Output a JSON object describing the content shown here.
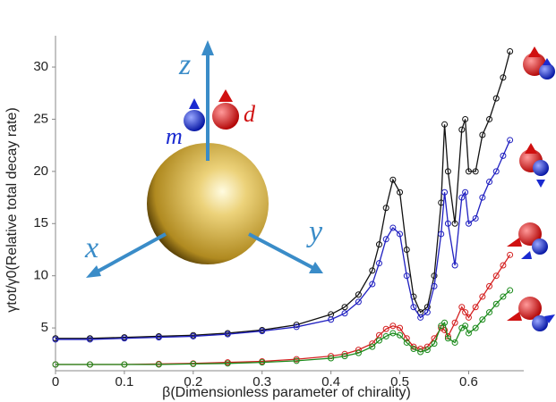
{
  "chart_data": {
    "type": "line",
    "x_label": "β(Dimensionless parameter of chirality)",
    "y_label": "γtot/γ0(Relative total decay rate)",
    "annotations": [
      "z",
      "x",
      "y",
      "m",
      "d"
    ],
    "x": [
      0,
      0.05,
      0.1,
      0.15,
      0.2,
      0.25,
      0.3,
      0.35,
      0.4,
      0.42,
      0.44,
      0.46,
      0.47,
      0.48,
      0.49,
      0.5,
      0.51,
      0.52,
      0.53,
      0.54,
      0.55,
      0.56,
      0.565,
      0.57,
      0.58,
      0.59,
      0.595,
      0.6,
      0.61,
      0.62,
      0.63,
      0.64,
      0.65,
      0.66
    ],
    "series": [
      {
        "color": "#111111",
        "values": [
          4,
          4,
          4.1,
          4.2,
          4.3,
          4.5,
          4.8,
          5.3,
          6.3,
          7,
          8.2,
          10.5,
          13,
          16.5,
          19.2,
          18,
          12.5,
          8,
          6.5,
          7,
          10,
          17,
          24.5,
          20,
          15,
          24,
          25,
          20,
          20,
          23.5,
          25,
          27,
          29,
          31.5
        ]
      },
      {
        "color": "#1f1fc0",
        "values": [
          3.9,
          3.9,
          4,
          4.1,
          4.2,
          4.4,
          4.7,
          5.1,
          5.8,
          6.4,
          7.5,
          9.2,
          11.2,
          13.5,
          14.6,
          14,
          10,
          7,
          6,
          6.5,
          9,
          14,
          18,
          15,
          11,
          17.5,
          18,
          15,
          15.5,
          17.5,
          19,
          20,
          21.5,
          23
        ]
      },
      {
        "color": "#d42020",
        "values": [
          1.5,
          1.5,
          1.5,
          1.55,
          1.6,
          1.7,
          1.8,
          2,
          2.3,
          2.5,
          2.9,
          3.5,
          4.3,
          4.9,
          5.2,
          5,
          4,
          3.2,
          3,
          3.2,
          4,
          5,
          4.8,
          4.2,
          5.5,
          7,
          6.5,
          6,
          7,
          8,
          9,
          10,
          11,
          12
        ]
      },
      {
        "color": "#1a8a1a",
        "values": [
          1.5,
          1.5,
          1.5,
          1.5,
          1.55,
          1.6,
          1.7,
          1.85,
          2.1,
          2.3,
          2.6,
          3.2,
          3.8,
          4.2,
          4.5,
          4.3,
          3.6,
          3,
          2.7,
          2.9,
          3.5,
          5.2,
          5.5,
          4,
          3.6,
          5,
          5.2,
          4.5,
          5,
          5.8,
          6.5,
          7.3,
          8,
          8.6
        ]
      }
    ],
    "xlim": [
      0,
      0.68
    ],
    "ylim": [
      0.9,
      33
    ],
    "xticks": [
      0,
      0.1,
      0.2,
      0.3,
      0.4,
      0.5,
      0.6
    ],
    "yticks": [
      5,
      10,
      15,
      20,
      25,
      30
    ]
  }
}
